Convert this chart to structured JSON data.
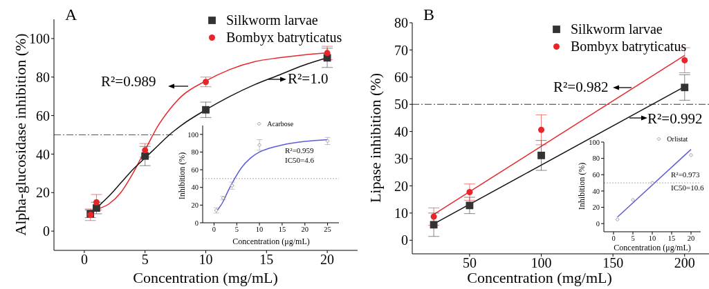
{
  "chart_data": [
    {
      "type": "scatter",
      "title": "A",
      "xlabel": "Concentration (mg/mL)",
      "ylabel": "Alpha-glucosidase inhibition (%)",
      "xlim": [
        -2.5,
        22.5
      ],
      "xticks": [
        0,
        5,
        10,
        15,
        20
      ],
      "ylim": [
        -10,
        110
      ],
      "yticks": [
        0,
        20,
        40,
        60,
        80,
        100
      ],
      "legend": "top right",
      "series": [
        {
          "name": "Silkworm larvae",
          "marker": "square",
          "color": "#333333",
          "x": [
            0.5,
            1,
            5,
            10,
            20
          ],
          "values": [
            9,
            12,
            39,
            63,
            90
          ],
          "errors": [
            2,
            3,
            5,
            4,
            5
          ]
        },
        {
          "name": "Bombyx batryticatus",
          "marker": "circle",
          "color": "#e8262a",
          "x": [
            0.5,
            1,
            5,
            10,
            20
          ],
          "values": [
            8.5,
            15,
            42,
            77.5,
            92.5
          ],
          "errors": [
            3,
            4,
            3.5,
            2.5,
            3.5
          ]
        },
        {
          "type": "line",
          "marker": "none",
          "color": "#e8262a",
          "x": [
            0.5,
            1,
            2,
            3,
            4,
            5,
            6,
            7,
            8,
            10,
            12,
            14,
            16,
            18,
            20
          ],
          "values": [
            9,
            11,
            14,
            20,
            30,
            42,
            54,
            63,
            70,
            78,
            84,
            88,
            90,
            91.5,
            92.5
          ]
        },
        {
          "type": "line",
          "marker": "none",
          "color": "#111111",
          "x": [
            0.5,
            1,
            2,
            3,
            4,
            5,
            6,
            7,
            8,
            10,
            12,
            14,
            16,
            18,
            20
          ],
          "values": [
            9,
            12,
            18,
            25,
            32,
            38,
            44,
            50,
            55,
            63,
            70,
            76,
            81,
            86,
            90
          ]
        }
      ],
      "ref_lines": [
        {
          "axis": "y",
          "value": 50,
          "color": "#555555",
          "line_style": "dashed"
        }
      ],
      "annotations": [
        "R²=0.989",
        "R²=1.0"
      ]
    },
    {
      "type": "scatter",
      "xlabel": "Concentration (μg/mL)",
      "ylabel": "Inhibition (%)",
      "xlim": [
        -2.5,
        27.5
      ],
      "xticks": [
        0,
        5,
        10,
        15,
        20,
        25
      ],
      "ylim": [
        0,
        110
      ],
      "yticks": [
        0,
        20,
        40,
        60,
        80,
        100
      ],
      "legend": "top right",
      "series": [
        {
          "name": "Acarbose",
          "marker": "diamond",
          "color": "#999999",
          "x": [
            0.5,
            2,
            4,
            10,
            25
          ],
          "values": [
            14,
            28,
            42,
            88,
            92.5
          ],
          "errors": [
            3,
            2,
            4,
            6,
            4
          ]
        },
        {
          "type": "line",
          "marker": "none",
          "color": "#5b5bd6",
          "x": [
            0.5,
            1,
            2,
            3,
            4,
            5,
            6,
            8,
            10,
            12,
            15,
            20,
            25
          ],
          "values": [
            13,
            16,
            24,
            35,
            45,
            54,
            62,
            73,
            80,
            84,
            88,
            92,
            94
          ]
        }
      ],
      "ref_lines": [
        {
          "axis": "y",
          "value": 50,
          "color": "#aaaaaa",
          "line_style": "dotted"
        }
      ],
      "annotations": [
        "R²=0.959",
        "IC50=4.6"
      ]
    },
    {
      "type": "scatter",
      "title": "B",
      "xlabel": "Concentration (mg/mL)",
      "ylabel": "Lipase inhibition (%)",
      "xlim": [
        10,
        217
      ],
      "xticks": [
        50,
        100,
        150,
        200
      ],
      "ylim": [
        -5,
        80
      ],
      "yticks": [
        0,
        10,
        20,
        30,
        40,
        50,
        60,
        70,
        80
      ],
      "legend": "top right",
      "series": [
        {
          "name": "Silkworm larvae",
          "marker": "square",
          "color": "#333333",
          "x": [
            25,
            50,
            100,
            200
          ],
          "values": [
            5.7,
            12.8,
            31.2,
            56.2
          ],
          "errors": [
            4.3,
            3,
            5.5,
            4.7
          ]
        },
        {
          "name": "Bombyx batryticatus",
          "marker": "circle",
          "color": "#e8262a",
          "x": [
            25,
            50,
            100,
            200
          ],
          "values": [
            8.7,
            17.7,
            40.6,
            66.2
          ],
          "errors": [
            3.2,
            3,
            5.5,
            4.6
          ]
        },
        {
          "type": "line",
          "marker": "none",
          "color": "#e8262a",
          "x": [
            25,
            200
          ],
          "values": [
            9.5,
            68
          ]
        },
        {
          "type": "line",
          "marker": "none",
          "color": "#111111",
          "x": [
            25,
            200
          ],
          "values": [
            6,
            56.5
          ]
        }
      ],
      "ref_lines": [
        {
          "axis": "y",
          "value": 50,
          "color": "#333333",
          "line_style": "dashed"
        }
      ],
      "annotations": [
        "R²=0.982",
        "R²=0.992"
      ]
    },
    {
      "type": "scatter",
      "xlabel": "Concentration (μg/mL)",
      "ylabel": "Inhibition (%)",
      "xlim": [
        -2.5,
        22.5
      ],
      "xticks": [
        0,
        5,
        10,
        15,
        20
      ],
      "ylim": [
        -10,
        100
      ],
      "yticks": [
        0,
        20,
        40,
        60,
        80,
        100
      ],
      "legend": "top right",
      "series": [
        {
          "name": "Orlistat",
          "marker": "diamond",
          "color": "#999999",
          "x": [
            1,
            5,
            10,
            20
          ],
          "values": [
            5,
            29,
            50,
            84
          ]
        },
        {
          "type": "line",
          "marker": "none",
          "color": "#5b5bd6",
          "x": [
            1,
            20
          ],
          "values": [
            8,
            91
          ]
        }
      ],
      "ref_lines": [
        {
          "axis": "y",
          "value": 50,
          "color": "#aaaaaa",
          "line_style": "dotted"
        }
      ],
      "annotations": [
        "R²=0.973",
        "IC50=10.6"
      ]
    }
  ]
}
